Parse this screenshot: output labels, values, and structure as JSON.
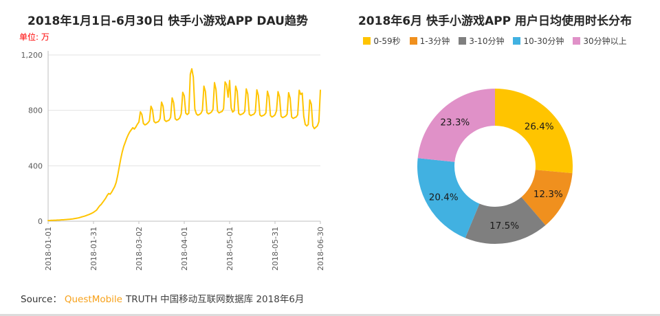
{
  "footer": {
    "source_label": "Source：",
    "brand": "QuestMobile",
    "suffix": "TRUTH 中国移动互联网数据库 2018年6月"
  },
  "colors": {
    "line_yellow": "#FFC400",
    "orange": "#F0901E",
    "gray": "#7F7F7F",
    "blue": "#41B1E1",
    "pink": "#E091C8",
    "brand_orange": "#F7A11A",
    "unit_red": "#FF0000",
    "grid": "#E3E3E3",
    "axis": "#BFBFBF"
  },
  "chart_data": [
    {
      "type": "line",
      "title": "2018年1月1日-6月30日 快手小游戏APP DAU趋势",
      "unit_label": "单位: 万",
      "color": "#FFC400",
      "ylim": [
        0,
        1200
      ],
      "yticks": [
        0,
        400,
        800,
        1200
      ],
      "ytick_labels": [
        "0",
        "400",
        "800",
        "1,200"
      ],
      "xtick_indices": [
        0,
        30,
        60,
        90,
        120,
        150,
        180
      ],
      "xtick_labels": [
        "2018-01-01",
        "2018-01-31",
        "2018-03-02",
        "2018-04-01",
        "2018-05-01",
        "2018-05-31",
        "2018-06-30"
      ],
      "grid": true,
      "values": [
        5,
        5,
        6,
        6,
        7,
        7,
        8,
        8,
        9,
        10,
        10,
        11,
        12,
        13,
        14,
        15,
        16,
        18,
        20,
        22,
        24,
        27,
        30,
        33,
        36,
        40,
        44,
        48,
        53,
        58,
        64,
        72,
        80,
        95,
        110,
        120,
        135,
        150,
        165,
        185,
        200,
        195,
        210,
        230,
        250,
        280,
        330,
        390,
        450,
        500,
        540,
        570,
        600,
        625,
        645,
        660,
        675,
        665,
        680,
        700,
        715,
        790,
        770,
        705,
        695,
        700,
        710,
        725,
        830,
        805,
        720,
        710,
        715,
        720,
        740,
        860,
        830,
        730,
        720,
        725,
        730,
        750,
        890,
        855,
        740,
        730,
        735,
        745,
        775,
        930,
        905,
        780,
        770,
        780,
        1060,
        1100,
        1040,
        810,
        775,
        765,
        770,
        778,
        800,
        975,
        935,
        785,
        775,
        780,
        788,
        808,
        1000,
        950,
        795,
        782,
        788,
        792,
        812,
        1005,
        985,
        895,
        1015,
        818,
        788,
        798,
        975,
        938,
        778,
        768,
        772,
        778,
        792,
        955,
        918,
        772,
        762,
        768,
        772,
        788,
        948,
        908,
        768,
        758,
        762,
        768,
        782,
        938,
        898,
        762,
        752,
        758,
        768,
        798,
        935,
        898,
        758,
        748,
        752,
        758,
        772,
        928,
        888,
        752,
        742,
        748,
        752,
        768,
        945,
        915,
        925,
        758,
        698,
        688,
        698,
        875,
        845,
        688,
        668,
        678,
        688,
        718,
        945
      ]
    },
    {
      "type": "pie",
      "donut": true,
      "title": "2018年6月 快手小游戏APP 用户日均使用时长分布",
      "legend_position": "top",
      "slices": [
        {
          "label": "0-59秒",
          "value": 26.4,
          "color": "#FFC400"
        },
        {
          "label": "1-3分钟",
          "value": 12.3,
          "color": "#F0901E"
        },
        {
          "label": "3-10分钟",
          "value": 17.5,
          "color": "#7F7F7F"
        },
        {
          "label": "10-30分钟",
          "value": 20.4,
          "color": "#41B1E1"
        },
        {
          "label": "30分钟以上",
          "value": 23.3,
          "color": "#E091C8"
        }
      ]
    }
  ]
}
